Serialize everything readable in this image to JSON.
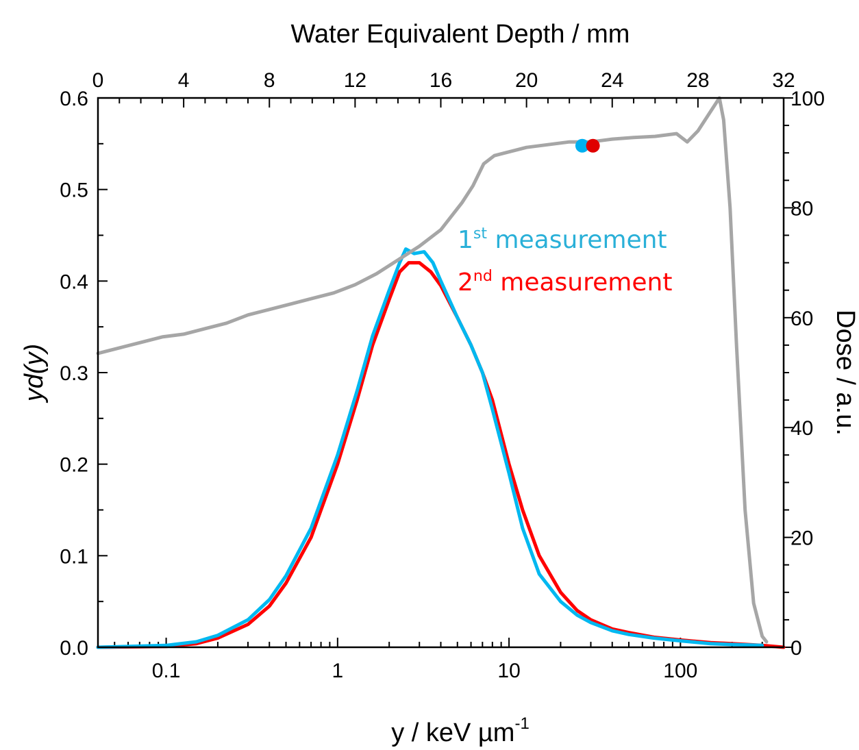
{
  "chart_data": {
    "type": "line",
    "x_bottom": {
      "label_main": "y / keV µm",
      "label_sup": "-1",
      "scale": "log",
      "lim": [
        0.04,
        400
      ],
      "tick_labels": [
        {
          "value": 0.1,
          "label": "0.1"
        },
        {
          "value": 1,
          "label": "1"
        },
        {
          "value": 10,
          "label": "10"
        },
        {
          "value": 100,
          "label": "100"
        }
      ]
    },
    "x_top": {
      "label": "Water Equivalent Depth / mm",
      "lim": [
        0,
        32
      ],
      "tick_labels": [
        {
          "value": 0,
          "label": "0"
        },
        {
          "value": 4,
          "label": "4"
        },
        {
          "value": 8,
          "label": "8"
        },
        {
          "value": 12,
          "label": "12"
        },
        {
          "value": 16,
          "label": "16"
        },
        {
          "value": 20,
          "label": "20"
        },
        {
          "value": 24,
          "label": "24"
        },
        {
          "value": 28,
          "label": "28"
        },
        {
          "value": 32,
          "label": "32"
        }
      ]
    },
    "y_left": {
      "label_prefix": "yd(",
      "label_var": "y",
      "label_suffix": ")",
      "lim": [
        0,
        0.6
      ],
      "tick_labels": [
        {
          "value": 0.0,
          "label": "0.0"
        },
        {
          "value": 0.1,
          "label": "0.1"
        },
        {
          "value": 0.2,
          "label": "0.2"
        },
        {
          "value": 0.3,
          "label": "0.3"
        },
        {
          "value": 0.4,
          "label": "0.4"
        },
        {
          "value": 0.5,
          "label": "0.5"
        },
        {
          "value": 0.6,
          "label": "0.6"
        }
      ]
    },
    "y_right": {
      "label": "Dose / a.u.",
      "lim": [
        0,
        100
      ],
      "tick_labels": [
        {
          "value": 0,
          "label": "0"
        },
        {
          "value": 20,
          "label": "20"
        },
        {
          "value": 40,
          "label": "40"
        },
        {
          "value": 60,
          "label": "60"
        },
        {
          "value": 80,
          "label": "80"
        },
        {
          "value": 100,
          "label": "100"
        }
      ]
    },
    "legend": [
      {
        "base": "1",
        "sup": "st",
        "text": " measurement",
        "color": "#2ab0d8"
      },
      {
        "base": "2",
        "sup": "nd",
        "text": " measurement",
        "color": "#ff0000"
      }
    ],
    "series": [
      {
        "id": "measurement-2",
        "color": "#ff0000",
        "axes": [
          "x_bottom",
          "y_left"
        ],
        "x": [
          0.04,
          0.1,
          0.15,
          0.2,
          0.3,
          0.4,
          0.5,
          0.7,
          1.0,
          1.3,
          1.6,
          2.0,
          2.3,
          2.6,
          3.0,
          3.5,
          4.0,
          5.0,
          6.0,
          7.0,
          8.0,
          10,
          12,
          15,
          20,
          25,
          30,
          40,
          50,
          70,
          100,
          150,
          200,
          300,
          400
        ],
        "y": [
          0.0,
          0.001,
          0.004,
          0.01,
          0.025,
          0.045,
          0.07,
          0.12,
          0.2,
          0.27,
          0.33,
          0.38,
          0.41,
          0.42,
          0.42,
          0.41,
          0.395,
          0.36,
          0.33,
          0.3,
          0.27,
          0.2,
          0.15,
          0.1,
          0.06,
          0.04,
          0.03,
          0.02,
          0.016,
          0.011,
          0.008,
          0.005,
          0.004,
          0.002,
          0.0
        ]
      },
      {
        "id": "measurement-1",
        "color": "#00b8f0",
        "axes": [
          "x_bottom",
          "y_left"
        ],
        "x": [
          0.04,
          0.1,
          0.15,
          0.2,
          0.3,
          0.4,
          0.5,
          0.7,
          1.0,
          1.3,
          1.6,
          2.0,
          2.3,
          2.5,
          2.8,
          3.2,
          3.6,
          4.0,
          5.0,
          6.0,
          7.0,
          8.0,
          10,
          12,
          15,
          20,
          25,
          30,
          40,
          50,
          70,
          100,
          150,
          200,
          300
        ],
        "y": [
          0.0,
          0.002,
          0.006,
          0.013,
          0.03,
          0.052,
          0.078,
          0.13,
          0.21,
          0.28,
          0.34,
          0.39,
          0.42,
          0.435,
          0.43,
          0.432,
          0.42,
          0.4,
          0.36,
          0.33,
          0.3,
          0.26,
          0.19,
          0.13,
          0.08,
          0.05,
          0.035,
          0.027,
          0.018,
          0.014,
          0.01,
          0.007,
          0.004,
          0.003,
          0.002
        ]
      },
      {
        "id": "dose-profile",
        "color": "#a6a6a6",
        "axes": [
          "x_top",
          "y_right"
        ],
        "x": [
          0,
          1,
          2,
          3,
          4,
          5,
          6,
          7,
          8,
          9,
          10,
          11,
          12,
          13,
          14,
          15,
          16,
          17,
          17.5,
          18,
          18.5,
          19,
          19.5,
          20,
          21,
          22,
          23,
          24,
          25,
          26,
          27,
          27.5,
          28,
          28.5,
          29,
          29.2,
          29.5,
          29.8,
          30.2,
          30.6,
          31.0,
          31.2
        ],
        "y": [
          53.5,
          54.5,
          55.5,
          56.5,
          57,
          58,
          59,
          60.5,
          61.5,
          62.5,
          63.5,
          64.5,
          66,
          68,
          70.5,
          73,
          76,
          81,
          84,
          88,
          89.5,
          90,
          90.5,
          91,
          91.5,
          92,
          92,
          92.5,
          92.8,
          93,
          93.5,
          92,
          94,
          97,
          100,
          96,
          80,
          55,
          25,
          8,
          2,
          1
        ]
      }
    ],
    "markers": [
      {
        "color": "#00b0f0",
        "depth": 22.6,
        "dose": 91.3
      },
      {
        "color": "#e00000",
        "depth": 23.1,
        "dose": 91.3
      }
    ]
  }
}
